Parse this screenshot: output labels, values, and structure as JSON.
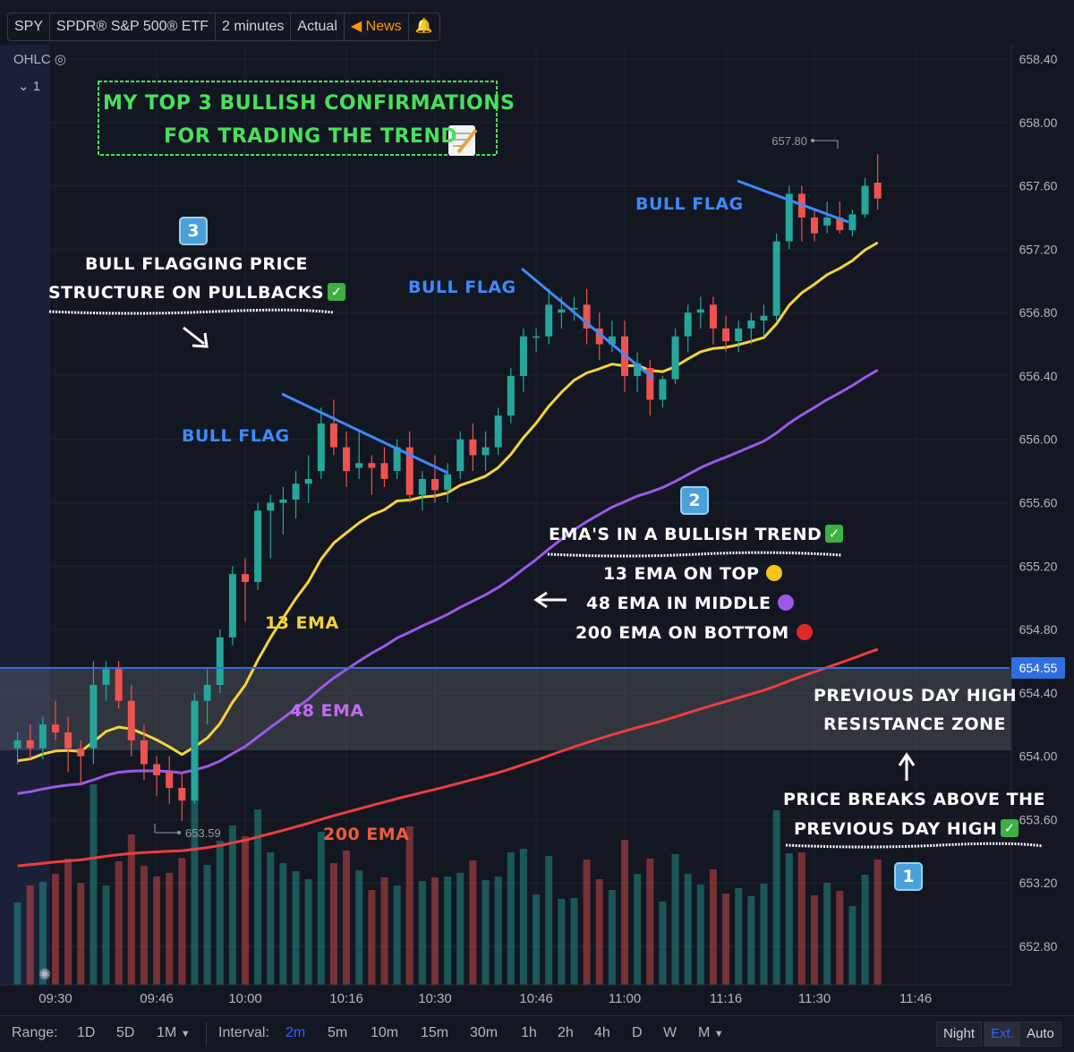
{
  "toolbar": {
    "symbol": "SPY",
    "description": "SPDR® S&P 500® ETF",
    "interval": "2 minutes",
    "mode": "Actual",
    "news": "News"
  },
  "legend": {
    "ohlc": "OHLC",
    "collapse": "1"
  },
  "colors": {
    "background": "#131722",
    "up": "#26a69a",
    "down": "#ef5350",
    "ema13": "#f5d33a",
    "ema48": "#9b59e8",
    "ema200": "#ef3d3d",
    "resistance": "#2e6fe0",
    "annotation_blue": "#3d8bfd",
    "title_green": "#48e05c"
  },
  "annotations": {
    "title_line1": "MY TOP 3 BULLISH CONFIRMATIONS",
    "title_line2": "FOR TRADING THE TREND",
    "badge3": "3",
    "bull_flagging_line1": "BULL FLAGGING PRICE",
    "bull_flagging_line2": "STRUCTURE ON PULLBACKS",
    "bull_flag": "BULL FLAG",
    "badge2": "2",
    "ema_trend": "EMA'S IN A BULLISH TREND",
    "ema13_note": "13 EMA ON TOP",
    "ema48_note": "48 EMA IN MIDDLE",
    "ema200_note": "200 EMA ON BOTTOM",
    "label_13": "13 EMA",
    "label_48": "48 EMA",
    "label_200": "200 EMA",
    "pdh_line1": "PREVIOUS DAY HIGH",
    "pdh_line2": "RESISTANCE ZONE",
    "breaks_line1": "PRICE BREAKS ABOVE THE",
    "breaks_line2": "PREVIOUS DAY HIGH",
    "badge1": "1"
  },
  "chart_data": {
    "type": "candlestick",
    "x_unit": "time (2-minute bars)",
    "ylim": [
      652.7,
      658.55
    ],
    "y_ticks": [
      "658.40",
      "658.00",
      "657.60",
      "657.20",
      "656.80",
      "656.40",
      "656.00",
      "655.60",
      "655.20",
      "654.80",
      "654.40",
      "654.00",
      "653.60",
      "653.20",
      "652.80"
    ],
    "x_ticks": [
      "09:30",
      "09:46",
      "10:00",
      "10:16",
      "10:30",
      "10:46",
      "11:00",
      "11:16",
      "11:30",
      "11:46"
    ],
    "price_label": "654.55",
    "high_marker": "657.80",
    "low_marker": "653.59",
    "candles": [
      {
        "t": "09:24",
        "o": 654.05,
        "h": 654.15,
        "l": 653.95,
        "c": 654.1
      },
      {
        "t": "09:26",
        "o": 654.1,
        "h": 654.2,
        "l": 653.98,
        "c": 654.05
      },
      {
        "t": "09:28",
        "o": 654.05,
        "h": 654.25,
        "l": 653.98,
        "c": 654.2
      },
      {
        "t": "09:30",
        "o": 654.2,
        "h": 654.35,
        "l": 654.1,
        "c": 654.15
      },
      {
        "t": "09:32",
        "o": 654.15,
        "h": 654.25,
        "l": 653.9,
        "c": 654.05
      },
      {
        "t": "09:34",
        "o": 654.05,
        "h": 654.1,
        "l": 653.82,
        "c": 654.0
      },
      {
        "t": "09:36",
        "o": 654.05,
        "h": 654.6,
        "l": 653.95,
        "c": 654.45
      },
      {
        "t": "09:38",
        "o": 654.45,
        "h": 654.6,
        "l": 654.35,
        "c": 654.55
      },
      {
        "t": "09:40",
        "o": 654.55,
        "h": 654.6,
        "l": 654.3,
        "c": 654.35
      },
      {
        "t": "09:42",
        "o": 654.35,
        "h": 654.45,
        "l": 654.0,
        "c": 654.1
      },
      {
        "t": "09:44",
        "o": 654.1,
        "h": 654.2,
        "l": 653.85,
        "c": 653.95
      },
      {
        "t": "09:46",
        "o": 653.95,
        "h": 654.0,
        "l": 653.75,
        "c": 653.88
      },
      {
        "t": "09:48",
        "o": 653.9,
        "h": 654.0,
        "l": 653.7,
        "c": 653.8
      },
      {
        "t": "09:50",
        "o": 653.8,
        "h": 653.9,
        "l": 653.59,
        "c": 653.72
      },
      {
        "t": "09:52",
        "o": 653.72,
        "h": 654.4,
        "l": 653.7,
        "c": 654.35
      },
      {
        "t": "09:54",
        "o": 654.35,
        "h": 654.55,
        "l": 654.2,
        "c": 654.45
      },
      {
        "t": "09:56",
        "o": 654.45,
        "h": 654.8,
        "l": 654.4,
        "c": 654.75
      },
      {
        "t": "09:58",
        "o": 654.75,
        "h": 655.2,
        "l": 654.7,
        "c": 655.15
      },
      {
        "t": "10:00",
        "o": 655.15,
        "h": 655.25,
        "l": 654.85,
        "c": 655.1
      },
      {
        "t": "10:02",
        "o": 655.1,
        "h": 655.6,
        "l": 655.05,
        "c": 655.55
      },
      {
        "t": "10:04",
        "o": 655.55,
        "h": 655.65,
        "l": 655.25,
        "c": 655.6
      },
      {
        "t": "10:06",
        "o": 655.6,
        "h": 655.7,
        "l": 655.4,
        "c": 655.62
      },
      {
        "t": "10:08",
        "o": 655.62,
        "h": 655.8,
        "l": 655.5,
        "c": 655.72
      },
      {
        "t": "10:10",
        "o": 655.72,
        "h": 655.9,
        "l": 655.6,
        "c": 655.75
      },
      {
        "t": "10:12",
        "o": 655.8,
        "h": 656.2,
        "l": 655.75,
        "c": 656.1
      },
      {
        "t": "10:14",
        "o": 656.1,
        "h": 656.25,
        "l": 655.9,
        "c": 655.95
      },
      {
        "t": "10:16",
        "o": 655.95,
        "h": 656.05,
        "l": 655.7,
        "c": 655.8
      },
      {
        "t": "10:18",
        "o": 655.82,
        "h": 656.05,
        "l": 655.75,
        "c": 655.85
      },
      {
        "t": "10:20",
        "o": 655.85,
        "h": 655.9,
        "l": 655.65,
        "c": 655.82
      },
      {
        "t": "10:22",
        "o": 655.85,
        "h": 655.95,
        "l": 655.7,
        "c": 655.75
      },
      {
        "t": "10:24",
        "o": 655.8,
        "h": 656.0,
        "l": 655.75,
        "c": 655.95
      },
      {
        "t": "10:26",
        "o": 655.95,
        "h": 656.05,
        "l": 655.6,
        "c": 655.65
      },
      {
        "t": "10:28",
        "o": 655.65,
        "h": 655.8,
        "l": 655.55,
        "c": 655.75
      },
      {
        "t": "10:30",
        "o": 655.75,
        "h": 655.9,
        "l": 655.6,
        "c": 655.68
      },
      {
        "t": "10:32",
        "o": 655.68,
        "h": 655.85,
        "l": 655.6,
        "c": 655.78
      },
      {
        "t": "10:34",
        "o": 655.8,
        "h": 656.05,
        "l": 655.75,
        "c": 656.0
      },
      {
        "t": "10:36",
        "o": 656.0,
        "h": 656.1,
        "l": 655.8,
        "c": 655.9
      },
      {
        "t": "10:38",
        "o": 655.9,
        "h": 656.05,
        "l": 655.8,
        "c": 655.95
      },
      {
        "t": "10:40",
        "o": 655.95,
        "h": 656.2,
        "l": 655.9,
        "c": 656.15
      },
      {
        "t": "10:42",
        "o": 656.15,
        "h": 656.45,
        "l": 656.1,
        "c": 656.4
      },
      {
        "t": "10:44",
        "o": 656.4,
        "h": 656.7,
        "l": 656.3,
        "c": 656.65
      },
      {
        "t": "10:46",
        "o": 656.65,
        "h": 656.7,
        "l": 656.55,
        "c": 656.65
      },
      {
        "t": "10:48",
        "o": 656.65,
        "h": 656.95,
        "l": 656.6,
        "c": 656.85
      },
      {
        "t": "10:50",
        "o": 656.8,
        "h": 656.9,
        "l": 656.7,
        "c": 656.82
      },
      {
        "t": "10:52",
        "o": 656.82,
        "h": 656.9,
        "l": 656.75,
        "c": 656.83
      },
      {
        "t": "10:54",
        "o": 656.85,
        "h": 656.95,
        "l": 656.6,
        "c": 656.7
      },
      {
        "t": "10:56",
        "o": 656.7,
        "h": 656.8,
        "l": 656.5,
        "c": 656.6
      },
      {
        "t": "10:58",
        "o": 656.6,
        "h": 656.75,
        "l": 656.55,
        "c": 656.65
      },
      {
        "t": "11:00",
        "o": 656.65,
        "h": 656.75,
        "l": 656.3,
        "c": 656.4
      },
      {
        "t": "11:02",
        "o": 656.4,
        "h": 656.55,
        "l": 656.3,
        "c": 656.48
      },
      {
        "t": "11:04",
        "o": 656.45,
        "h": 656.5,
        "l": 656.15,
        "c": 656.25
      },
      {
        "t": "11:06",
        "o": 656.25,
        "h": 656.4,
        "l": 656.2,
        "c": 656.38
      },
      {
        "t": "11:08",
        "o": 656.38,
        "h": 656.7,
        "l": 656.35,
        "c": 656.65
      },
      {
        "t": "11:10",
        "o": 656.65,
        "h": 656.85,
        "l": 656.55,
        "c": 656.8
      },
      {
        "t": "11:12",
        "o": 656.8,
        "h": 656.9,
        "l": 656.7,
        "c": 656.82
      },
      {
        "t": "11:14",
        "o": 656.85,
        "h": 656.9,
        "l": 656.6,
        "c": 656.7
      },
      {
        "t": "11:16",
        "o": 656.7,
        "h": 656.78,
        "l": 656.55,
        "c": 656.62
      },
      {
        "t": "11:18",
        "o": 656.62,
        "h": 656.75,
        "l": 656.55,
        "c": 656.7
      },
      {
        "t": "11:20",
        "o": 656.7,
        "h": 656.8,
        "l": 656.6,
        "c": 656.75
      },
      {
        "t": "11:22",
        "o": 656.75,
        "h": 656.85,
        "l": 656.65,
        "c": 656.78
      },
      {
        "t": "11:24",
        "o": 656.78,
        "h": 657.3,
        "l": 656.75,
        "c": 657.25
      },
      {
        "t": "11:26",
        "o": 657.25,
        "h": 657.6,
        "l": 657.2,
        "c": 657.55
      },
      {
        "t": "11:28",
        "o": 657.55,
        "h": 657.6,
        "l": 657.25,
        "c": 657.4
      },
      {
        "t": "11:30",
        "o": 657.4,
        "h": 657.45,
        "l": 657.25,
        "c": 657.3
      },
      {
        "t": "11:32",
        "o": 657.35,
        "h": 657.5,
        "l": 657.3,
        "c": 657.4
      },
      {
        "t": "11:34",
        "o": 657.4,
        "h": 657.5,
        "l": 657.3,
        "c": 657.32
      },
      {
        "t": "11:36",
        "o": 657.32,
        "h": 657.45,
        "l": 657.28,
        "c": 657.42
      },
      {
        "t": "11:38",
        "o": 657.42,
        "h": 657.65,
        "l": 657.4,
        "c": 657.6
      },
      {
        "t": "11:40",
        "o": 657.62,
        "h": 657.8,
        "l": 657.45,
        "c": 657.52
      }
    ]
  },
  "bottom_bar": {
    "range_label": "Range:",
    "ranges": [
      "1D",
      "5D",
      "1M"
    ],
    "interval_label": "Interval:",
    "intervals": [
      "2m",
      "5m",
      "10m",
      "15m",
      "30m",
      "1h",
      "2h",
      "4h",
      "D",
      "W",
      "M"
    ],
    "active_interval": "2m",
    "session": [
      "Night",
      "Ext.",
      "Auto"
    ]
  }
}
